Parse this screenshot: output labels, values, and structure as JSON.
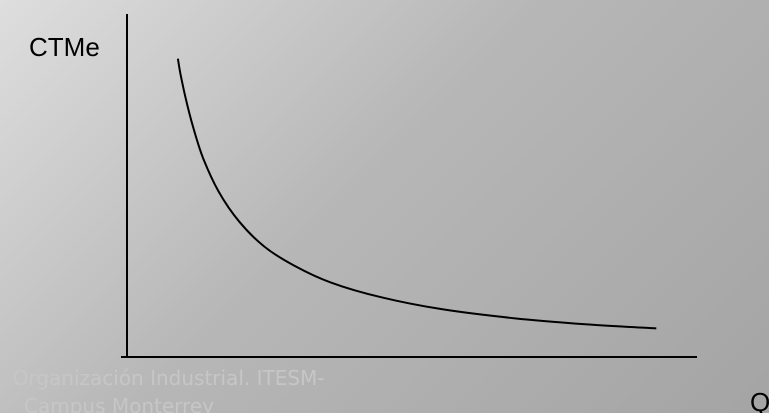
{
  "chart_data": {
    "type": "line",
    "ylabel": "CTMe",
    "xlabel": "Q",
    "x": [
      1.0,
      1.05,
      1.15,
      1.3,
      1.5,
      1.8,
      2.2,
      2.7,
      3.3,
      4.0,
      5.0,
      6.2,
      7.6,
      9.0,
      10.4
    ],
    "y": [
      10.0,
      9.5,
      8.7,
      7.7,
      6.65,
      5.55,
      4.55,
      3.7,
      3.05,
      2.5,
      2.0,
      1.6,
      1.3,
      1.1,
      0.96
    ],
    "xlim": [
      0,
      11.2
    ],
    "ylim": [
      0,
      11.5
    ],
    "grid": false,
    "ticks": false,
    "line_color": "#000000"
  },
  "watermark": {
    "line1": ". Organización Industrial. ITESM-",
    "line2": "Campus Monterrey"
  }
}
